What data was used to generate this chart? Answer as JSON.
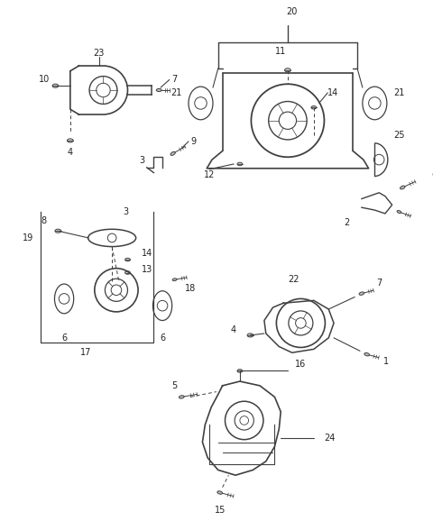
{
  "bg_color": "#ffffff",
  "lc": "#404040",
  "tc": "#222222",
  "fig_w": 4.8,
  "fig_h": 5.78,
  "dpi": 100,
  "fs": 7.0
}
